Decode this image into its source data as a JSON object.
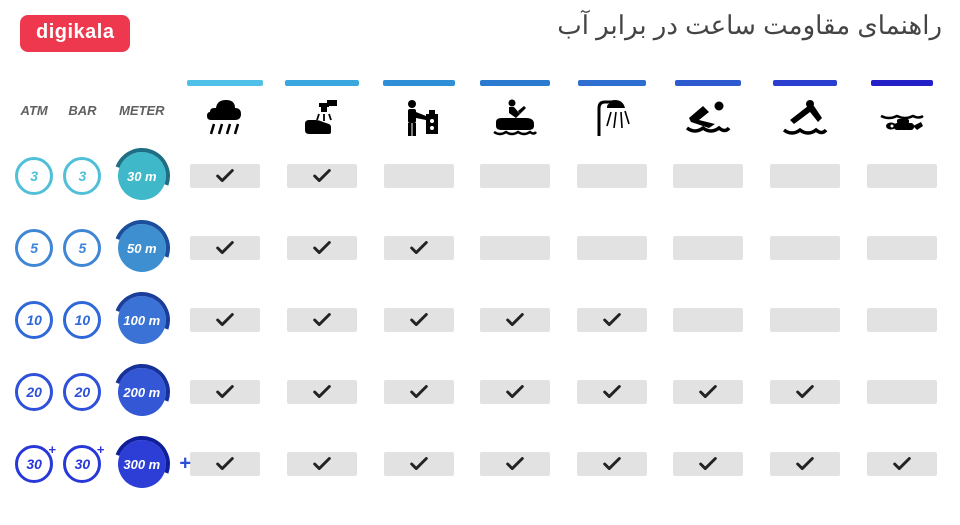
{
  "brand": {
    "name": "digikala",
    "bg": "#ee384e"
  },
  "title": "راهنمای مقاومت ساعت در برابر آب",
  "headers": {
    "atm": "ATM",
    "bar": "BAR",
    "meter": "METER"
  },
  "activities": [
    {
      "id": "rain",
      "tab_color": "#4fc0e8",
      "tab_width": 76
    },
    {
      "id": "wash",
      "tab_color": "#3aa7df",
      "tab_width": 74
    },
    {
      "id": "work",
      "tab_color": "#2f8fd6",
      "tab_width": 72
    },
    {
      "id": "jetski",
      "tab_color": "#2a7bd0",
      "tab_width": 70
    },
    {
      "id": "shower",
      "tab_color": "#2e6ed0",
      "tab_width": 68
    },
    {
      "id": "swim",
      "tab_color": "#2e5ad0",
      "tab_width": 66
    },
    {
      "id": "dive",
      "tab_color": "#2a3fcf",
      "tab_width": 64
    },
    {
      "id": "scuba",
      "tab_color": "#2320c8",
      "tab_width": 62
    }
  ],
  "rows": [
    {
      "atm": "3",
      "bar": "3",
      "meter": "30 m",
      "ring_color": "#4fc0d8",
      "fill_color": "#3fb8c9",
      "arc_color": "#1e6e86",
      "plus": false,
      "checks": [
        true,
        true,
        false,
        false,
        false,
        false,
        false,
        false
      ]
    },
    {
      "atm": "5",
      "bar": "5",
      "meter": "50 m",
      "ring_color": "#3f86d6",
      "fill_color": "#3d8fd0",
      "arc_color": "#1b4f9e",
      "plus": false,
      "checks": [
        true,
        true,
        true,
        false,
        false,
        false,
        false,
        false
      ]
    },
    {
      "atm": "10",
      "bar": "10",
      "meter": "100 m",
      "ring_color": "#2f68d8",
      "fill_color": "#3a72d6",
      "arc_color": "#1b3e9a",
      "plus": false,
      "checks": [
        true,
        true,
        true,
        true,
        true,
        false,
        false,
        false
      ]
    },
    {
      "atm": "20",
      "bar": "20",
      "meter": "200 m",
      "ring_color": "#2f50d8",
      "fill_color": "#3457d6",
      "arc_color": "#17319a",
      "plus": false,
      "checks": [
        true,
        true,
        true,
        true,
        true,
        true,
        true,
        false
      ]
    },
    {
      "atm": "30",
      "bar": "30",
      "meter": "300 m",
      "ring_color": "#2838d8",
      "fill_color": "#2c3ed6",
      "arc_color": "#0f1e9a",
      "plus": true,
      "checks": [
        true,
        true,
        true,
        true,
        true,
        true,
        true,
        true
      ]
    }
  ],
  "style": {
    "chip_bg": "#e2e2e2",
    "check_color": "#232323",
    "title_color": "#444444",
    "hdr_color": "#606060"
  }
}
